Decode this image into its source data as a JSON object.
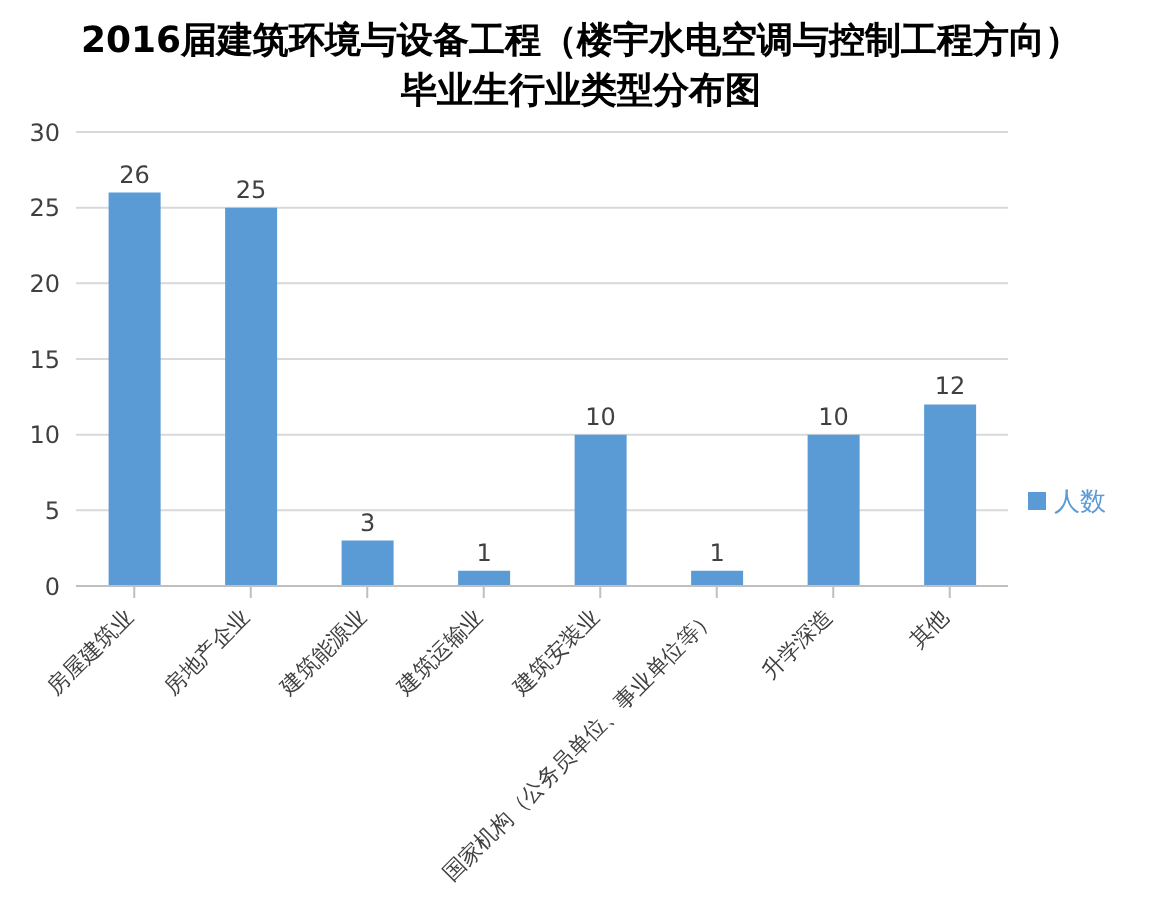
{
  "chart_data": {
    "type": "bar",
    "title": "2016届建筑环境与设备工程（楼宇水电空调与控制工程方向）毕业生行业类型分布图",
    "categories": [
      "房屋建筑业",
      "房地产企业",
      "建筑能源业",
      "建筑运输业",
      "建筑安装业",
      "国家机构（公务员单位、事业单位等）",
      "升学深造",
      "其他"
    ],
    "series": [
      {
        "name": "人数",
        "color": "#5b9bd5",
        "values": [
          26,
          25,
          3,
          1,
          10,
          1,
          10,
          12
        ]
      }
    ],
    "ylim": [
      0,
      30
    ],
    "yticks": [
      0,
      5,
      10,
      15,
      20,
      25,
      30
    ],
    "grid": "y",
    "legend": "right",
    "data_labels": true
  }
}
